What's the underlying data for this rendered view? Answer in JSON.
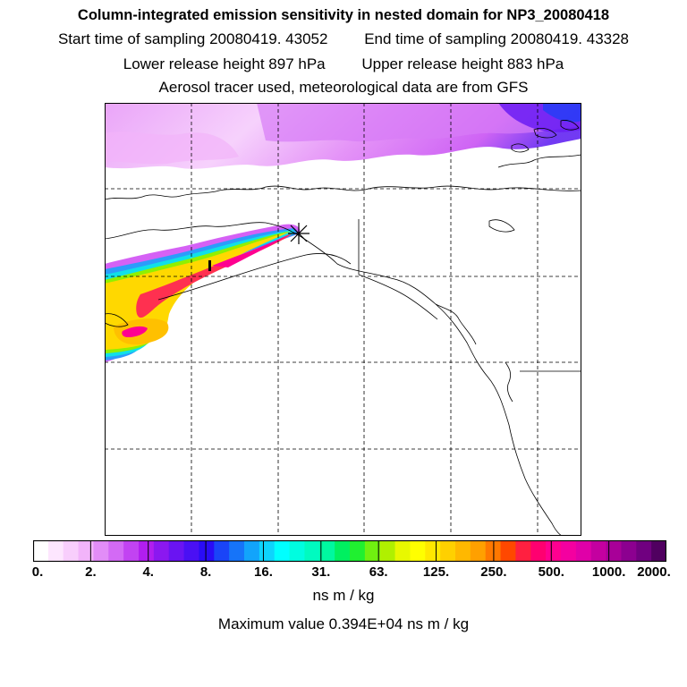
{
  "header": {
    "title": "Column-integrated emission sensitivity in nested domain for NP3_20080418",
    "start_label": "Start time of sampling 20080419. 43052",
    "end_label": "End time of sampling 20080419. 43328",
    "lower_label": "Lower release height  897 hPa",
    "upper_label": "Upper release height  883 hPa",
    "tracer_line": "Aerosol tracer used, meteorological data are from GFS"
  },
  "map": {
    "release_marker": "asterisk-icon",
    "land_outline_color": "#000000",
    "grid_style": "dashed"
  },
  "colorbar": {
    "tick_labels": [
      "0.",
      "2.",
      "4.",
      "8.",
      "16.",
      "31.",
      "63.",
      "125.",
      "250.",
      "500.",
      "1000.",
      "2000."
    ],
    "colors": [
      "#ffffff",
      "#fde6fe",
      "#f8cefc",
      "#f2b4fa",
      "#e28df7",
      "#d36af5",
      "#c243f2",
      "#b11eef",
      "#8b18f0",
      "#6a14f2",
      "#4a10f4",
      "#2a0cf6",
      "#1a44f8",
      "#1674f9",
      "#12a4fb",
      "#0ed4fd",
      "#00ffff",
      "#00fde0",
      "#00fbc0",
      "#00f8a0",
      "#00f060",
      "#20f030",
      "#70f010",
      "#b0f000",
      "#e8f800",
      "#ffff00",
      "#ffe800",
      "#ffd000",
      "#ffb800",
      "#ffa000",
      "#ff7800",
      "#ff4800",
      "#ff2040",
      "#ff0070",
      "#ff0090",
      "#f400a0",
      "#e000a8",
      "#c400a0",
      "#a80098",
      "#8c0090",
      "#700080",
      "#500060"
    ]
  },
  "footer": {
    "unit": "ns m / kg",
    "max_value": "Maximum value  0.394E+04 ns m / kg"
  }
}
